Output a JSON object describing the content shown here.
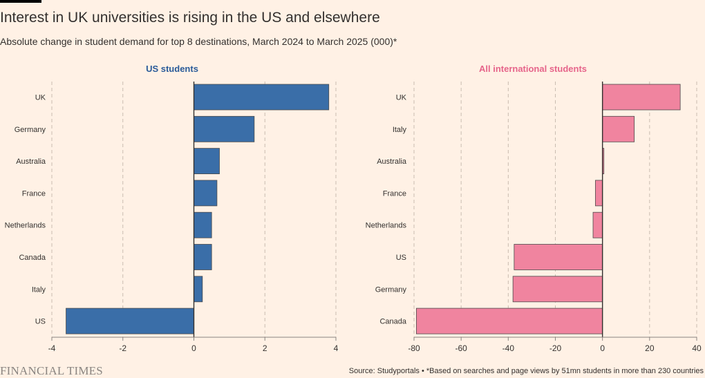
{
  "header": {
    "title": "Interest in UK universities is rising in the US and elsewhere",
    "subtitle": "Absolute change in student demand for top 8 destinations, March 2024 to March 2025 (000)*"
  },
  "footer": {
    "brand": "FINANCIAL TIMES",
    "source": "Source: Studyportals • *Based on searches and page views by 51mn students in more than 230 countries"
  },
  "colors": {
    "us_bar": "#3a6ea8",
    "intl_bar": "#f0849f",
    "bar_stroke": "#4a4a4a",
    "grid": "#c9bcb0",
    "axis": "#33302e",
    "us_title": "#2a5b99",
    "intl_title": "#e6648a"
  },
  "chart_data": [
    {
      "type": "bar",
      "orientation": "horizontal",
      "title": "US students",
      "categories": [
        "UK",
        "Germany",
        "Australia",
        "France",
        "Netherlands",
        "Canada",
        "Italy",
        "US"
      ],
      "values": [
        3.8,
        1.7,
        0.72,
        0.65,
        0.5,
        0.5,
        0.24,
        -3.6
      ],
      "xlim": [
        -4,
        4
      ],
      "xticks": [
        -4,
        -2,
        0,
        2,
        4
      ],
      "grid": true
    },
    {
      "type": "bar",
      "orientation": "horizontal",
      "title": "All international students",
      "categories": [
        "UK",
        "Italy",
        "Australia",
        "France",
        "Netherlands",
        "US",
        "Germany",
        "Canada"
      ],
      "values": [
        33,
        13.5,
        0.6,
        -3,
        -4,
        -37.5,
        -38,
        -79
      ],
      "xlim": [
        -80,
        40
      ],
      "xticks": [
        -80,
        -60,
        -40,
        -20,
        0,
        20,
        40
      ],
      "grid": true
    }
  ]
}
